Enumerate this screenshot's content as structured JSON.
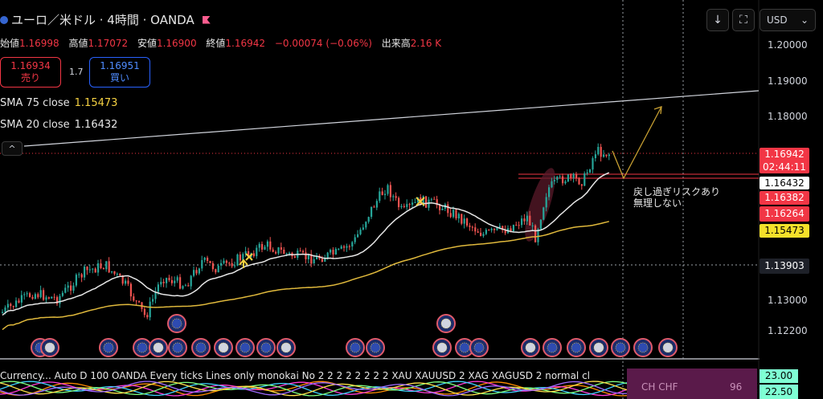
{
  "header": {
    "title": "ユーロ／米ドル · 4時間 · OANDA",
    "ohlc": [
      {
        "label": "始値",
        "value": "1.16998"
      },
      {
        "label": "高値",
        "value": "1.17072"
      },
      {
        "label": "安値",
        "value": "1.16900"
      },
      {
        "label": "終値",
        "value": "1.16942"
      },
      {
        "label": "",
        "value": "−0.00074 (−0.06%)"
      },
      {
        "label": "出来高",
        "value": "2.16 K"
      }
    ]
  },
  "toolbar": {
    "download_icon": "↓",
    "fullscreen_icon": "⛶",
    "currency": "USD",
    "currency_chevron": "⌄"
  },
  "trade": {
    "sell_price": "1.16934",
    "sell_label": "売り",
    "spread": "1.7",
    "buy_price": "1.16951",
    "buy_label": "買い"
  },
  "indicators": {
    "sma75_label": "SMA 75 close",
    "sma75_value": "1.15473",
    "sma20_label": "SMA 20 close",
    "sma20_value": "1.16432",
    "collapse_icon": "^"
  },
  "axis": {
    "ticks": [
      "1.20000",
      "1.19000",
      "1.18000",
      "1.13000",
      "1.12200"
    ]
  },
  "price_labels": {
    "current": "1.16942",
    "countdown": "02:44:11",
    "sma20": "1.16432",
    "level1": "1.16382",
    "level2": "1.16264",
    "sma75": "1.15473",
    "crosshair": "1.13903"
  },
  "annotation": "戻し過ぎリスクあり\n無理しない",
  "status_bar": "Currency... Auto D 100 OANDA Every ticks Lines only monokai No 2 2 2 2 2 2 2 2 XAU XAUUSD 2 XAG XAGUSD 2 normal cl",
  "bottom_panel": {
    "text": "CH   CHF",
    "value": "96"
  },
  "indicator_values": [
    "23.00",
    "22.50"
  ],
  "colors": {
    "up": "#26a69a",
    "down": "#ef5350",
    "sma20": "#e6e6e6",
    "sma75": "#e0b93c",
    "sell": "#f23645",
    "buy": "#2962ff",
    "level": "#f23645"
  }
}
